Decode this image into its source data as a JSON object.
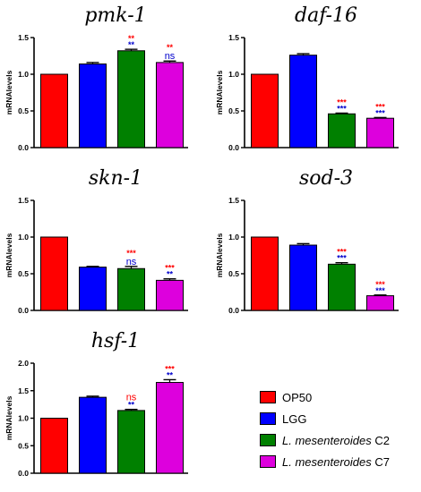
{
  "colors": {
    "OP50": "#ff0000",
    "LGG": "#0000ff",
    "C2": "#008000",
    "C7": "#dd00dd",
    "star_red": "#ff0000",
    "star_blue": "#0000cc"
  },
  "legend": [
    {
      "prefix": "",
      "italic": "",
      "suffix": "OP50",
      "color": "#ff0000"
    },
    {
      "prefix": "",
      "italic": "",
      "suffix": "LGG",
      "color": "#0000ff"
    },
    {
      "prefix": "",
      "italic": "L. mesenteroides",
      "suffix": " C2",
      "color": "#008000"
    },
    {
      "prefix": "",
      "italic": "L. mesenteroides",
      "suffix": " C7",
      "color": "#dd00dd"
    }
  ],
  "chart_data": [
    {
      "type": "bar",
      "title": "pmk-1",
      "ylabel": "mRNAlevels",
      "categories": [
        "OP50",
        "LGG",
        "C2",
        "C7"
      ],
      "values": [
        1.0,
        1.14,
        1.32,
        1.16
      ],
      "errors": [
        0.0,
        0.02,
        0.02,
        0.02
      ],
      "ylim": [
        0,
        1.5
      ],
      "yticks": [
        "0.0",
        "0.5",
        "1.0",
        "1.5"
      ],
      "annotations": [
        null,
        null,
        {
          "red": "**",
          "blue": "**"
        },
        {
          "red": "**",
          "blue": "ns"
        }
      ]
    },
    {
      "type": "bar",
      "title": "daf-16",
      "ylabel": "mRNAlevels",
      "categories": [
        "OP50",
        "LGG",
        "C2",
        "C7"
      ],
      "values": [
        1.0,
        1.26,
        0.46,
        0.4
      ],
      "errors": [
        0.0,
        0.02,
        0.01,
        0.01
      ],
      "ylim": [
        0,
        1.5
      ],
      "yticks": [
        "0.0",
        "0.5",
        "1.0",
        "1.5"
      ],
      "annotations": [
        null,
        null,
        {
          "red": "***",
          "blue": "***"
        },
        {
          "red": "***",
          "blue": "***"
        }
      ]
    },
    {
      "type": "bar",
      "title": "skn-1",
      "ylabel": "mRNAlevels",
      "categories": [
        "OP50",
        "LGG",
        "C2",
        "C7"
      ],
      "values": [
        1.0,
        0.59,
        0.57,
        0.41
      ],
      "errors": [
        0.0,
        0.01,
        0.03,
        0.02
      ],
      "ylim": [
        0,
        1.5
      ],
      "yticks": [
        "0.0",
        "0.5",
        "1.0",
        "1.5"
      ],
      "annotations": [
        null,
        null,
        {
          "red": "***",
          "blue": "ns"
        },
        {
          "red": "***",
          "blue": "**"
        }
      ]
    },
    {
      "type": "bar",
      "title": "sod-3",
      "ylabel": "mRNAlevels",
      "categories": [
        "OP50",
        "LGG",
        "C2",
        "C7"
      ],
      "values": [
        1.0,
        0.89,
        0.63,
        0.2
      ],
      "errors": [
        0.0,
        0.02,
        0.02,
        0.01
      ],
      "ylim": [
        0,
        1.5
      ],
      "yticks": [
        "0.0",
        "0.5",
        "1.0",
        "1.5"
      ],
      "annotations": [
        null,
        null,
        {
          "red": "***",
          "blue": "***"
        },
        {
          "red": "***",
          "blue": "***"
        }
      ]
    },
    {
      "type": "bar",
      "title": "hsf-1",
      "ylabel": "mRNAlevels",
      "categories": [
        "OP50",
        "LGG",
        "C2",
        "C7"
      ],
      "values": [
        1.0,
        1.38,
        1.14,
        1.65
      ],
      "errors": [
        0.0,
        0.02,
        0.02,
        0.05
      ],
      "ylim": [
        0,
        2.0
      ],
      "yticks": [
        "0.0",
        "0.5",
        "1.0",
        "1.5",
        "2.0"
      ],
      "annotations": [
        null,
        null,
        {
          "red": "ns",
          "blue": "**"
        },
        {
          "red": "***",
          "blue": "**"
        }
      ]
    }
  ]
}
